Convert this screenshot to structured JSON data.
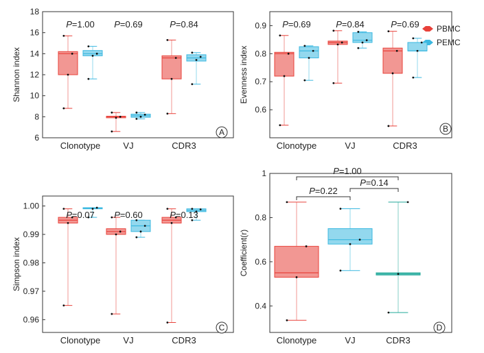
{
  "legend": [
    {
      "name": "PBMC",
      "color": "#e8413a"
    },
    {
      "name": "PEMC",
      "color": "#3bb8e0"
    }
  ],
  "chart_data": [
    {
      "type": "boxplot",
      "panel": "A",
      "ylabel": "Shannon index",
      "ylim": [
        6,
        18
      ],
      "yticks": [
        6,
        8,
        10,
        12,
        14,
        16,
        18
      ],
      "categories": [
        "Clonotype",
        "VJ",
        "CDR3"
      ],
      "p_labels": [
        "P = 1.00",
        "P = 0.69",
        "P = 0.84"
      ],
      "series": [
        {
          "name": "PBMC",
          "boxes": [
            {
              "min": 8.8,
              "q1": 12.0,
              "median": 14.0,
              "q3": 14.2,
              "max": 15.7,
              "points": [
                8.8,
                12.0,
                14.0,
                15.7
              ]
            },
            {
              "min": 6.6,
              "q1": 7.9,
              "median": 8.0,
              "q3": 8.05,
              "max": 8.4,
              "points": [
                6.6,
                7.9,
                8.0,
                8.4
              ]
            },
            {
              "min": 8.3,
              "q1": 11.6,
              "median": 13.6,
              "q3": 13.8,
              "max": 15.3,
              "points": [
                8.3,
                11.6,
                13.6,
                15.3
              ]
            }
          ]
        },
        {
          "name": "PEMC",
          "boxes": [
            {
              "min": 11.6,
              "q1": 13.8,
              "median": 14.0,
              "q3": 14.3,
              "max": 14.7,
              "points": [
                11.6,
                13.8,
                14.0,
                14.7
              ]
            },
            {
              "min": 7.8,
              "q1": 7.95,
              "median": 8.1,
              "q3": 8.25,
              "max": 8.4,
              "points": [
                7.8,
                8.0,
                8.2,
                8.4
              ]
            },
            {
              "min": 11.1,
              "q1": 13.3,
              "median": 13.6,
              "q3": 13.9,
              "max": 14.1,
              "points": [
                11.1,
                13.4,
                13.7,
                14.1
              ]
            }
          ]
        }
      ]
    },
    {
      "type": "boxplot",
      "panel": "B",
      "ylabel": "Evenness index",
      "ylim": [
        0.5,
        0.95
      ],
      "yticks": [
        0.6,
        0.7,
        0.8,
        0.9
      ],
      "categories": [
        "Clonotype",
        "VJ",
        "CDR3"
      ],
      "p_labels": [
        "P = 0.69",
        "P = 0.84",
        "P = 0.69"
      ],
      "series": [
        {
          "name": "PBMC",
          "boxes": [
            {
              "min": 0.545,
              "q1": 0.72,
              "median": 0.8,
              "q3": 0.805,
              "max": 0.865,
              "points": [
                0.545,
                0.72,
                0.8,
                0.865
              ]
            },
            {
              "min": 0.695,
              "q1": 0.833,
              "median": 0.84,
              "q3": 0.845,
              "max": 0.882,
              "points": [
                0.695,
                0.833,
                0.84,
                0.882
              ]
            },
            {
              "min": 0.542,
              "q1": 0.73,
              "median": 0.81,
              "q3": 0.82,
              "max": 0.88,
              "points": [
                0.542,
                0.73,
                0.81,
                0.88
              ]
            }
          ]
        },
        {
          "name": "PEMC",
          "boxes": [
            {
              "min": 0.705,
              "q1": 0.785,
              "median": 0.81,
              "q3": 0.825,
              "max": 0.828,
              "points": [
                0.705,
                0.785,
                0.81,
                0.828
              ]
            },
            {
              "min": 0.82,
              "q1": 0.84,
              "median": 0.848,
              "q3": 0.875,
              "max": 0.878,
              "points": [
                0.82,
                0.84,
                0.848,
                0.878
              ]
            },
            {
              "min": 0.715,
              "q1": 0.81,
              "median": 0.81,
              "q3": 0.84,
              "max": 0.855,
              "points": [
                0.715,
                0.81,
                0.84,
                0.855
              ]
            }
          ]
        }
      ]
    },
    {
      "type": "boxplot",
      "panel": "C",
      "ylabel": "Simpson index",
      "ylim": [
        0.9555,
        1.0035
      ],
      "yticks": [
        0.96,
        0.97,
        0.98,
        0.99,
        1.0
      ],
      "ytick_labels": [
        "0.96",
        "0.97",
        "0.98",
        "0.99",
        "1.00"
      ],
      "categories": [
        "Clonotype",
        "VJ",
        "CDR3"
      ],
      "p_labels": [
        "P = 0.07",
        "P = 0.60",
        "P = 0.13"
      ],
      "series": [
        {
          "name": "PBMC",
          "boxes": [
            {
              "min": 0.965,
              "q1": 0.994,
              "median": 0.995,
              "q3": 0.996,
              "max": 0.999,
              "points": [
                0.965,
                0.994,
                0.996,
                0.999
              ]
            },
            {
              "min": 0.962,
              "q1": 0.99,
              "median": 0.991,
              "q3": 0.992,
              "max": 0.996,
              "points": [
                0.962,
                0.99,
                0.991,
                0.996
              ]
            },
            {
              "min": 0.959,
              "q1": 0.994,
              "median": 0.995,
              "q3": 0.996,
              "max": 0.999,
              "points": [
                0.959,
                0.994,
                0.996,
                0.999
              ]
            }
          ]
        },
        {
          "name": "PEMC",
          "boxes": [
            {
              "min": 0.996,
              "q1": 0.999,
              "median": 0.9992,
              "q3": 0.9994,
              "max": 0.9994,
              "points": [
                0.996,
                0.999,
                0.9994
              ]
            },
            {
              "min": 0.989,
              "q1": 0.991,
              "median": 0.993,
              "q3": 0.995,
              "max": 0.995,
              "points": [
                0.989,
                0.991,
                0.993,
                0.995
              ]
            },
            {
              "min": 0.995,
              "q1": 0.998,
              "median": 0.9985,
              "q3": 0.999,
              "max": 0.999,
              "points": [
                0.995,
                0.998,
                0.9988,
                0.999
              ]
            }
          ]
        }
      ]
    },
    {
      "type": "boxplot",
      "panel": "D",
      "ylabel": "Coefficient(r)",
      "ylim": [
        0.28,
        1.0
      ],
      "yticks": [
        0.4,
        0.6,
        0.8,
        1.0
      ],
      "categories": [
        "Clonotype",
        "VJ",
        "CDR3"
      ],
      "p_labels": [
        "P = 1.00",
        "P = 0.22",
        "P = 0.14"
      ],
      "boxes": [
        {
          "color": "#e8413a",
          "min": 0.335,
          "q1": 0.53,
          "median": 0.55,
          "q3": 0.67,
          "max": 0.87,
          "points": [
            0.335,
            0.53,
            0.67,
            0.87
          ]
        },
        {
          "color": "#3bb8e0",
          "min": 0.56,
          "q1": 0.68,
          "median": 0.7,
          "q3": 0.75,
          "max": 0.84,
          "points": [
            0.56,
            0.68,
            0.7,
            0.84
          ]
        },
        {
          "color": "#20a89a",
          "min": 0.37,
          "q1": 0.54,
          "median": 0.545,
          "q3": 0.55,
          "max": 0.87,
          "points": [
            0.37,
            0.545,
            0.87
          ]
        }
      ]
    }
  ]
}
